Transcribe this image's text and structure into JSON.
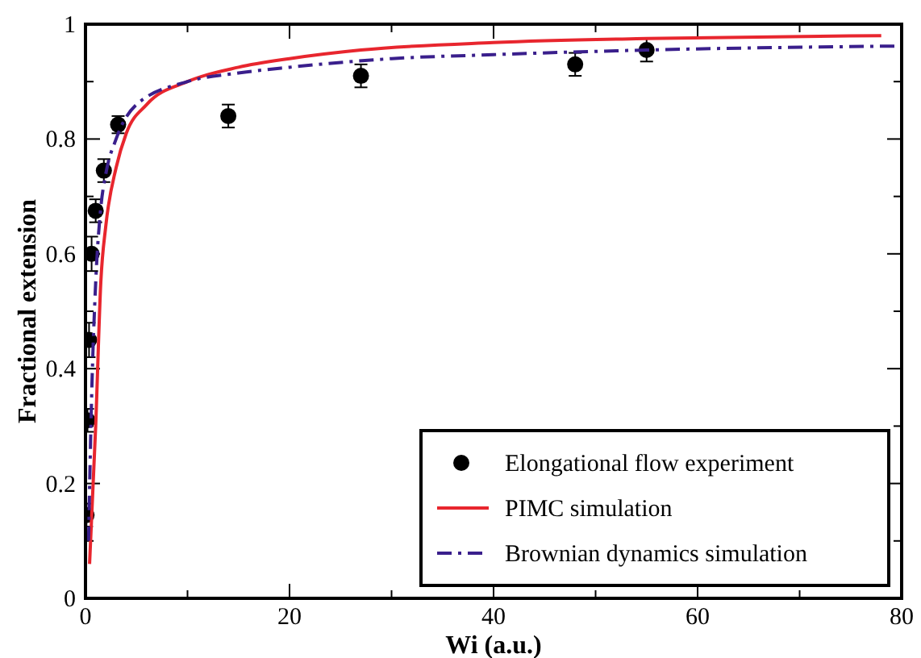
{
  "chart_data": {
    "type": "scatter",
    "xlabel": "Wi (a.u.)",
    "ylabel": "Fractional extension",
    "xlim": [
      0,
      80
    ],
    "ylim": [
      0,
      1
    ],
    "xticks": [
      0,
      {
        "value": 10,
        "label": null
      },
      20,
      {
        "value": 30,
        "label": null
      },
      40,
      {
        "value": 50,
        "label": null
      },
      60,
      {
        "value": 70,
        "label": null
      },
      80
    ],
    "yticks": [
      0,
      {
        "value": 0.1,
        "label": null
      },
      0.2,
      {
        "value": 0.3,
        "label": null
      },
      0.4,
      {
        "value": 0.5,
        "label": null
      },
      0.6,
      {
        "value": 0.7,
        "label": null
      },
      0.8,
      {
        "value": 0.9,
        "label": null
      },
      1
    ],
    "legend": "bottom right",
    "grid": false,
    "series": [
      {
        "name": "Elongational flow experiment",
        "marker": "circle",
        "color": "#000000",
        "x": [
          0.1,
          0.2,
          0.35,
          0.6,
          1.0,
          1.8,
          3.2,
          14,
          27,
          48,
          55
        ],
        "values": [
          0.145,
          0.31,
          0.45,
          0.6,
          0.675,
          0.745,
          0.825,
          0.84,
          0.91,
          0.93,
          0.955
        ],
        "errors": [
          0.02,
          0.02,
          0.03,
          0.03,
          0.02,
          0.02,
          0.015,
          0.02,
          0.02,
          0.02,
          0.02
        ]
      },
      {
        "name": "PIMC simulation",
        "type": "line",
        "line_style": "solid",
        "color": "#e8262e",
        "x": [
          0.4,
          1,
          1.5,
          2,
          3,
          4,
          6,
          10,
          15,
          20,
          27,
          40,
          55,
          78
        ],
        "values": [
          0.06,
          0.3,
          0.55,
          0.65,
          0.75,
          0.81,
          0.86,
          0.9,
          0.925,
          0.94,
          0.955,
          0.968,
          0.975,
          0.98
        ]
      },
      {
        "name": "Brownian dynamics simulation",
        "type": "line",
        "line_style": "dashdot",
        "color": "#3a1f8c",
        "x": [
          0.3,
          0.6,
          1,
          1.5,
          2,
          3,
          5,
          10,
          15,
          20,
          30,
          40,
          55,
          80
        ],
        "values": [
          0.1,
          0.35,
          0.55,
          0.68,
          0.74,
          0.8,
          0.86,
          0.9,
          0.915,
          0.925,
          0.94,
          0.947,
          0.955,
          0.962
        ]
      }
    ]
  }
}
